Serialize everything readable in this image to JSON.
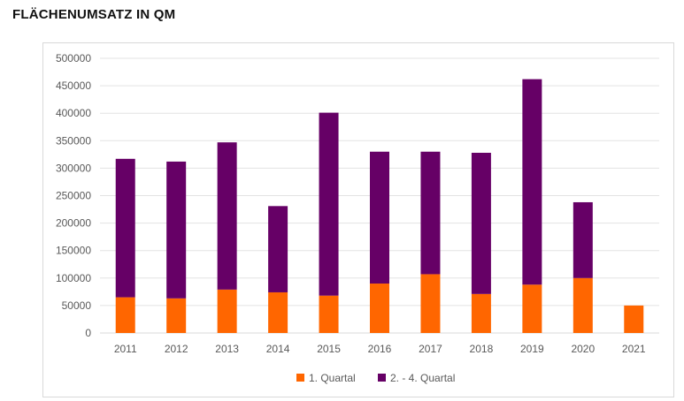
{
  "chart_data": {
    "type": "bar",
    "stacked": true,
    "title": "FLÄCHENUMSATZ IN QM",
    "categories": [
      "2011",
      "2012",
      "2013",
      "2014",
      "2015",
      "2016",
      "2017",
      "2018",
      "2019",
      "2020",
      "2021"
    ],
    "series": [
      {
        "name": "1. Quartal",
        "color": "#FF6600",
        "values": [
          65000,
          63000,
          79000,
          74000,
          68000,
          90000,
          107000,
          71000,
          88000,
          100000,
          50000
        ]
      },
      {
        "name": "2. - 4. Quartal",
        "color": "#660066",
        "values": [
          252000,
          249000,
          268000,
          157000,
          333000,
          240000,
          223000,
          257000,
          374000,
          138000,
          0
        ]
      }
    ],
    "ylim": [
      0,
      500000
    ],
    "yticks": [
      "0",
      "50000",
      "100000",
      "150000",
      "200000",
      "250000",
      "300000",
      "350000",
      "400000",
      "450000",
      "500000"
    ],
    "grid": true,
    "legend_position": "bottom"
  }
}
